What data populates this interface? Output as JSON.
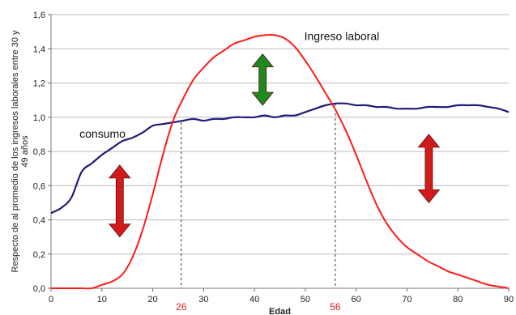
{
  "chart_data": {
    "type": "line",
    "xlabel": "Edad",
    "ylabel_lines": [
      "Respecto de al promedio de los ingresos laborales entre 30 y",
      "49 años"
    ],
    "xlim": [
      0,
      90
    ],
    "ylim": [
      0,
      1.6
    ],
    "x_ticks": [
      0,
      10,
      20,
      30,
      40,
      50,
      60,
      70,
      80,
      90
    ],
    "y_ticks": [
      "0,0",
      "0,2",
      "0,4",
      "0,6",
      "0,8",
      "1,0",
      "1,2",
      "1,4",
      "1,6"
    ],
    "grid": "horizontal",
    "series": [
      {
        "name": "consumo",
        "color": "#1f1a7a",
        "x": [
          0,
          2,
          4,
          6,
          8,
          10,
          12,
          14,
          16,
          18,
          20,
          22,
          24,
          26,
          28,
          30,
          32,
          34,
          36,
          38,
          40,
          42,
          44,
          46,
          48,
          50,
          52,
          54,
          56,
          58,
          60,
          62,
          64,
          66,
          68,
          70,
          72,
          74,
          76,
          78,
          80,
          82,
          84,
          86,
          88,
          90
        ],
        "y": [
          0.44,
          0.47,
          0.53,
          0.68,
          0.73,
          0.78,
          0.82,
          0.86,
          0.88,
          0.91,
          0.95,
          0.96,
          0.97,
          0.98,
          0.99,
          0.98,
          0.99,
          0.99,
          1.0,
          1.0,
          1.0,
          1.01,
          1.0,
          1.01,
          1.01,
          1.03,
          1.05,
          1.07,
          1.08,
          1.08,
          1.07,
          1.07,
          1.06,
          1.06,
          1.05,
          1.05,
          1.05,
          1.06,
          1.06,
          1.06,
          1.07,
          1.07,
          1.07,
          1.06,
          1.05,
          1.03
        ]
      },
      {
        "name": "Ingreso laboral",
        "color": "#ff1a1a",
        "x": [
          0,
          2,
          4,
          6,
          8,
          10,
          12,
          14,
          16,
          18,
          20,
          22,
          24,
          26,
          28,
          30,
          32,
          34,
          36,
          38,
          40,
          42,
          44,
          46,
          48,
          50,
          52,
          54,
          56,
          58,
          60,
          62,
          64,
          66,
          68,
          70,
          72,
          74,
          76,
          78,
          80,
          82,
          84,
          86,
          88,
          90
        ],
        "y": [
          0.0,
          0.0,
          0.0,
          0.0,
          0.0,
          0.02,
          0.04,
          0.08,
          0.18,
          0.34,
          0.55,
          0.78,
          0.98,
          1.11,
          1.22,
          1.29,
          1.35,
          1.39,
          1.43,
          1.45,
          1.47,
          1.48,
          1.48,
          1.46,
          1.41,
          1.33,
          1.24,
          1.14,
          1.04,
          0.92,
          0.78,
          0.63,
          0.49,
          0.38,
          0.3,
          0.24,
          0.2,
          0.16,
          0.13,
          0.1,
          0.08,
          0.06,
          0.04,
          0.02,
          0.01,
          0.0
        ]
      }
    ],
    "annotations": [
      {
        "text": "consumo",
        "x": 5.6,
        "y": 0.88,
        "series": 0
      },
      {
        "text": "Ingreso laboral",
        "x": 49.8,
        "y": 1.45,
        "series": 1
      }
    ],
    "reference_lines": [
      {
        "x": 25.6,
        "y": 0.97,
        "label": "26"
      },
      {
        "x": 55.9,
        "y": 1.08,
        "label": "56"
      }
    ],
    "arrows": [
      {
        "x": 13.5,
        "y_from": 0.3,
        "y_to": 0.72,
        "color": "#d11b1b"
      },
      {
        "x": 41.6,
        "y_from": 1.07,
        "y_to": 1.37,
        "color": "#1e8a1e"
      },
      {
        "x": 74.3,
        "y_from": 0.5,
        "y_to": 0.9,
        "color": "#d11b1b"
      }
    ]
  }
}
